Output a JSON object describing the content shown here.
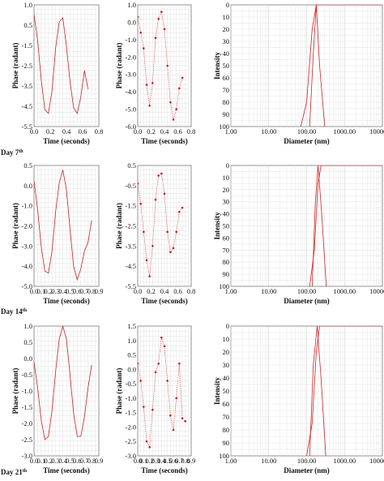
{
  "row_labels": [
    {
      "text": "Day 7",
      "sup": "th"
    },
    {
      "text": "Day 14",
      "sup": "th"
    },
    {
      "text": "Day 21",
      "sup": "th"
    }
  ],
  "chart_data": [
    {
      "id": "r1-fit",
      "type": "line",
      "xlabel": "Time (seconds)",
      "ylabel": "Phase (radant)",
      "xlim": [
        0.0,
        0.9
      ],
      "ylim": [
        -5.5,
        1.0
      ],
      "xticks": [
        "0.0",
        "0.2",
        "0.4",
        "0.6",
        "0.8"
      ],
      "yticks": [
        "1.0",
        "0.5",
        "-1.5",
        "-2.5",
        "-3.5",
        "-4.5",
        "-5.5"
      ],
      "series": [
        {
          "x": [
            0.0,
            0.05,
            0.1,
            0.15,
            0.2,
            0.25,
            0.3,
            0.35,
            0.4,
            0.45,
            0.5,
            0.55,
            0.6,
            0.65,
            0.7,
            0.75
          ],
          "y": [
            0.5,
            -0.9,
            -3.0,
            -4.6,
            -4.8,
            -3.6,
            -1.3,
            0.1,
            0.3,
            -1.2,
            -3.1,
            -4.5,
            -4.8,
            -3.9,
            -2.5,
            -3.5
          ]
        }
      ],
      "grid": true
    },
    {
      "id": "r1-data",
      "type": "scatter",
      "xlabel": "Time (seconds)",
      "ylabel": "Phase (radant)",
      "xlim": [
        0.0,
        0.9
      ],
      "ylim": [
        -6.0,
        1.0
      ],
      "xticks": [
        "0.0",
        "0.2",
        "0.4",
        "0.6",
        "0.8"
      ],
      "yticks": [
        "1.0",
        "0.0",
        "-1.0",
        "-2.0",
        "-3.0",
        "-4.0",
        "-5.0",
        "-6.0"
      ],
      "series": [
        {
          "x": [
            0.0,
            0.05,
            0.1,
            0.15,
            0.2,
            0.25,
            0.3,
            0.35,
            0.4,
            0.45,
            0.5,
            0.55,
            0.6,
            0.65,
            0.7,
            0.75
          ],
          "y": [
            0.3,
            -0.6,
            -1.5,
            -3.6,
            -4.8,
            -3.5,
            -0.9,
            0.2,
            0.6,
            -0.4,
            -2.5,
            -4.6,
            -5.6,
            -5.0,
            -3.8,
            -3.2
          ]
        }
      ],
      "grid": true
    },
    {
      "id": "r1-size",
      "type": "line",
      "xlabel": "Diameter (nm)",
      "ylabel": "Intensity",
      "xscale": "log",
      "xlim": [
        1.0,
        10000.0
      ],
      "ylim": [
        0,
        100
      ],
      "xticks": [
        "1.00",
        "10.00",
        "100.00",
        "1000.00",
        "10000.00"
      ],
      "yticks": [
        "0",
        "10",
        "20",
        "30",
        "40",
        "50",
        "60",
        "70",
        "80",
        "90",
        "100"
      ],
      "series": [
        {
          "x": [
            70,
            100,
            140,
            180,
            220,
            300,
            500,
            1000,
            10000
          ],
          "y": [
            0,
            20,
            80,
            100,
            100,
            100,
            100,
            100,
            100
          ]
        },
        {
          "x": [
            120,
            150,
            180,
            220,
            300
          ],
          "y": [
            0,
            60,
            100,
            50,
            0
          ]
        }
      ],
      "grid": true
    },
    {
      "id": "r2-fit",
      "type": "line",
      "xlabel": "Time (seconds)",
      "ylabel": "Phase (radant)",
      "xlim": [
        0.0,
        0.9
      ],
      "ylim": [
        -5.0,
        0.5
      ],
      "xticks": [
        "0.0",
        "0.1",
        "0.2",
        "0.3",
        "0.4",
        "0.5",
        "0.6",
        "0.7",
        "0.8",
        "0.9"
      ],
      "yticks": [
        "0.5",
        "0.0",
        "-1.0",
        "-2.0",
        "-3.0",
        "-4.0",
        "-5.0"
      ],
      "series": [
        {
          "x": [
            0.0,
            0.05,
            0.1,
            0.15,
            0.2,
            0.25,
            0.3,
            0.35,
            0.4,
            0.45,
            0.5,
            0.55,
            0.6,
            0.65,
            0.7,
            0.75,
            0.8
          ],
          "y": [
            -0.2,
            -1.5,
            -3.2,
            -4.3,
            -4.4,
            -3.4,
            -1.6,
            -0.3,
            0.3,
            -0.6,
            -2.4,
            -4.1,
            -4.7,
            -4.2,
            -3.4,
            -3.0,
            -2.0
          ]
        }
      ],
      "grid": true
    },
    {
      "id": "r2-data",
      "type": "scatter",
      "xlabel": "Time (seconds)",
      "ylabel": "Phase (radant)",
      "xlim": [
        0.0,
        0.9
      ],
      "ylim": [
        -5.5,
        0.5
      ],
      "xticks": [
        "0.0",
        "0.2",
        "0.4",
        "0.6",
        "0.8"
      ],
      "yticks": [
        "0.5",
        "-0.5",
        "-1.5",
        "-2.5",
        "-3.5",
        "-4.5",
        "-5.5"
      ],
      "series": [
        {
          "x": [
            0.0,
            0.05,
            0.1,
            0.15,
            0.2,
            0.25,
            0.3,
            0.35,
            0.4,
            0.45,
            0.5,
            0.55,
            0.6,
            0.65,
            0.7,
            0.75
          ],
          "y": [
            -0.4,
            -1.4,
            -2.8,
            -4.2,
            -5.0,
            -3.5,
            -1.2,
            0.0,
            0.1,
            -0.9,
            -2.8,
            -3.8,
            -3.6,
            -2.8,
            -1.8,
            -1.6
          ]
        }
      ],
      "grid": true
    },
    {
      "id": "r2-size",
      "type": "line",
      "xlabel": "Diameter (nm)",
      "ylabel": "Intensity",
      "xscale": "log",
      "xlim": [
        1.0,
        10000.0
      ],
      "ylim": [
        0,
        100
      ],
      "xticks": [
        "1.00",
        "10.00",
        "100.00",
        "1000.00",
        "10000.00"
      ],
      "yticks": [
        "0",
        "10",
        "20",
        "30",
        "40",
        "50",
        "60",
        "70",
        "80",
        "90",
        "100"
      ],
      "series": [
        {
          "x": [
            120,
            160,
            200,
            240,
            300,
            500,
            1000,
            10000
          ],
          "y": [
            0,
            30,
            85,
            100,
            100,
            100,
            100,
            100
          ]
        },
        {
          "x": [
            140,
            170,
            200,
            250,
            330
          ],
          "y": [
            0,
            70,
            100,
            60,
            0
          ]
        }
      ],
      "grid": true
    },
    {
      "id": "r3-fit",
      "type": "line",
      "xlabel": "Time (seconds)",
      "ylabel": "Phase (radant)",
      "xlim": [
        0.0,
        0.9
      ],
      "ylim": [
        -3.0,
        1.0
      ],
      "xticks": [
        "0.0",
        "0.1",
        "0.2",
        "0.3",
        "0.4",
        "0.5",
        "0.6",
        "0.7",
        "0.8",
        "0.9"
      ],
      "yticks": [
        "1.0",
        "0.5",
        "0.0",
        "-0.5",
        "-1.0",
        "-1.5",
        "-2.0",
        "-2.5",
        "-3.0"
      ],
      "series": [
        {
          "x": [
            0.0,
            0.05,
            0.1,
            0.15,
            0.2,
            0.25,
            0.3,
            0.35,
            0.4,
            0.45,
            0.5,
            0.55,
            0.6,
            0.65,
            0.7,
            0.75,
            0.8
          ],
          "y": [
            -0.1,
            -0.9,
            -1.9,
            -2.5,
            -2.4,
            -1.6,
            -0.4,
            0.6,
            1.0,
            0.6,
            -0.5,
            -1.7,
            -2.4,
            -2.4,
            -1.8,
            -0.9,
            -0.2
          ]
        }
      ],
      "grid": true
    },
    {
      "id": "r3-data",
      "type": "scatter",
      "xlabel": "Time (seconds)",
      "ylabel": "Phase (radant)",
      "xlim": [
        0.0,
        0.9
      ],
      "ylim": [
        -3.0,
        1.5
      ],
      "xticks": [
        "0.0",
        "0.1",
        "0.2",
        "0.3",
        "0.4",
        "0.5",
        "0.6",
        "0.7",
        "0.8",
        "0.9"
      ],
      "yticks": [
        "1.5",
        "1.0",
        "0.5",
        "0.0",
        "-0.5",
        "-1.0",
        "-1.5",
        "-2.0",
        "-2.5",
        "-3.0"
      ],
      "series": [
        {
          "x": [
            0.0,
            0.05,
            0.1,
            0.15,
            0.2,
            0.25,
            0.3,
            0.35,
            0.4,
            0.45,
            0.5,
            0.55,
            0.6,
            0.65,
            0.7,
            0.75,
            0.8
          ],
          "y": [
            0.2,
            -0.4,
            -1.3,
            -2.5,
            -2.7,
            -1.4,
            -0.1,
            0.2,
            1.1,
            0.8,
            -0.4,
            -1.6,
            -2.1,
            -1.0,
            0.2,
            -1.7,
            -1.8
          ]
        }
      ],
      "grid": true
    },
    {
      "id": "r3-size",
      "type": "line",
      "xlabel": "Diameter (nm)",
      "ylabel": "Intensity",
      "xscale": "log",
      "xlim": [
        1.0,
        10000.0
      ],
      "ylim": [
        0,
        100
      ],
      "xticks": [
        "1.00",
        "10.00",
        "100.00",
        "1000.00",
        "10000.00"
      ],
      "yticks": [
        "0",
        "10",
        "20",
        "30",
        "40",
        "50",
        "60",
        "70",
        "80",
        "90",
        "100"
      ],
      "series": [
        {
          "x": [
            100,
            140,
            180,
            220,
            280,
            500,
            1000,
            10000
          ],
          "y": [
            0,
            25,
            80,
            100,
            100,
            100,
            100,
            100
          ]
        },
        {
          "x": [
            120,
            150,
            190,
            240,
            320
          ],
          "y": [
            0,
            70,
            100,
            60,
            0
          ]
        }
      ],
      "grid": true
    }
  ]
}
